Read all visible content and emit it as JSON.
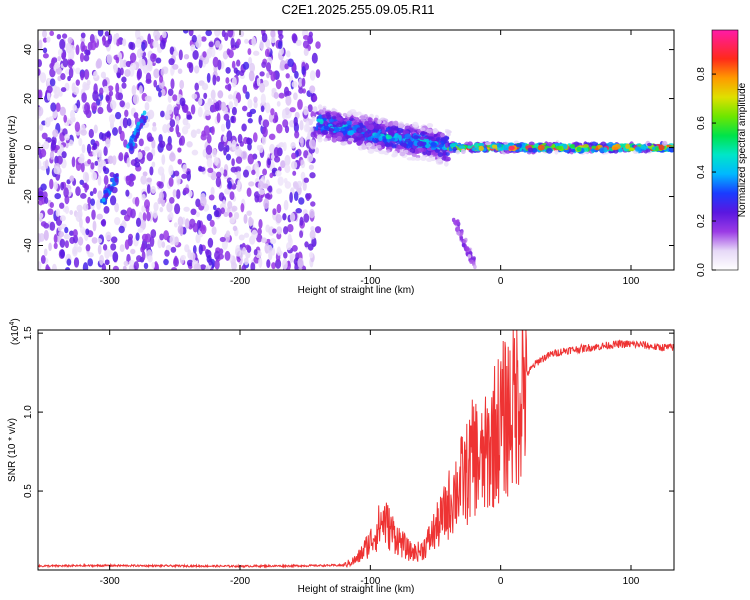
{
  "title": "C2E1.2025.255.09.05.R11",
  "chart_data": [
    {
      "type": "heatmap",
      "xlabel": "Height of straight line (km)",
      "ylabel": "Frequency (Hz)",
      "xlim": [
        -355,
        133
      ],
      "ylim": [
        -50,
        48
      ],
      "xticks": [
        -300,
        -200,
        -100,
        0,
        100
      ],
      "yticks": [
        -40,
        -20,
        0,
        20,
        40
      ],
      "colorbar": {
        "label": "Normalized spectral amplitude",
        "range": [
          0.0,
          0.98
        ],
        "ticks": [
          0.0,
          0.2,
          0.4,
          0.6,
          0.8
        ],
        "tick_labels": [
          "0.0",
          "0.2",
          "0.4",
          "0.6",
          "0.8"
        ],
        "colormap": "rainbow (white-violet-blue-cyan-green-yellow-red-magenta)"
      },
      "features": [
        {
          "kind": "noise",
          "x_range": [
            -355,
            -140
          ],
          "freq_range": [
            -50,
            48
          ],
          "amplitude": 0.1
        },
        {
          "kind": "streak",
          "x": [
            -305,
            -295
          ],
          "freq": [
            -22,
            -12
          ],
          "amplitude": 0.3
        },
        {
          "kind": "streak",
          "x": [
            -285,
            -272
          ],
          "freq": [
            0,
            14
          ],
          "amplitude": 0.3
        },
        {
          "kind": "band",
          "x_range": [
            -140,
            -40
          ],
          "freq_center": [
            10,
            0
          ],
          "freq_spread": 8,
          "amplitude": 0.35
        },
        {
          "kind": "band",
          "x_range": [
            -40,
            133
          ],
          "freq_center": [
            0,
            0
          ],
          "freq_spread": 2,
          "amplitude": 0.7
        },
        {
          "kind": "streak",
          "x": [
            -35,
            -20
          ],
          "freq": [
            -30,
            -48
          ],
          "amplitude": 0.15
        }
      ],
      "grid": false
    },
    {
      "type": "line",
      "xlabel": "Height of straight line (km)",
      "ylabel": "SNR (10 * v/v)",
      "multiplier": "(x10",
      "multiplier_exp": "4",
      "multiplier_close": ")",
      "xlim": [
        -355,
        133
      ],
      "ylim": [
        0,
        15200
      ],
      "xticks": [
        -300,
        -200,
        -100,
        0,
        100
      ],
      "yticks": [
        5000,
        10000,
        15000
      ],
      "ytick_labels": [
        "0.5",
        "1.0",
        "1.5"
      ],
      "color": "#ee3333",
      "series": [
        {
          "x": [
            -355,
            -300,
            -250,
            -200,
            -150,
            -120,
            -110,
            -100,
            -95,
            -90,
            -85,
            -80,
            -75,
            -70,
            -65,
            -60,
            -55,
            -50,
            -45,
            -40,
            -35,
            -30,
            -25,
            -20,
            -15,
            -10,
            -5,
            0,
            5,
            10,
            15,
            20,
            25,
            30,
            40,
            50,
            60,
            70,
            80,
            90,
            100,
            110,
            120,
            133
          ],
          "y": [
            250,
            280,
            260,
            240,
            270,
            300,
            700,
            1800,
            2500,
            3200,
            2600,
            2100,
            1600,
            1200,
            1100,
            1300,
            1900,
            2600,
            3200,
            4100,
            5000,
            5600,
            6200,
            7400,
            6600,
            7400,
            8600,
            9200,
            9800,
            10600,
            11600,
            12400,
            12900,
            13300,
            13700,
            13900,
            14000,
            14100,
            14200,
            14300,
            14300,
            14250,
            14100,
            14100
          ]
        }
      ],
      "grid": false
    }
  ]
}
